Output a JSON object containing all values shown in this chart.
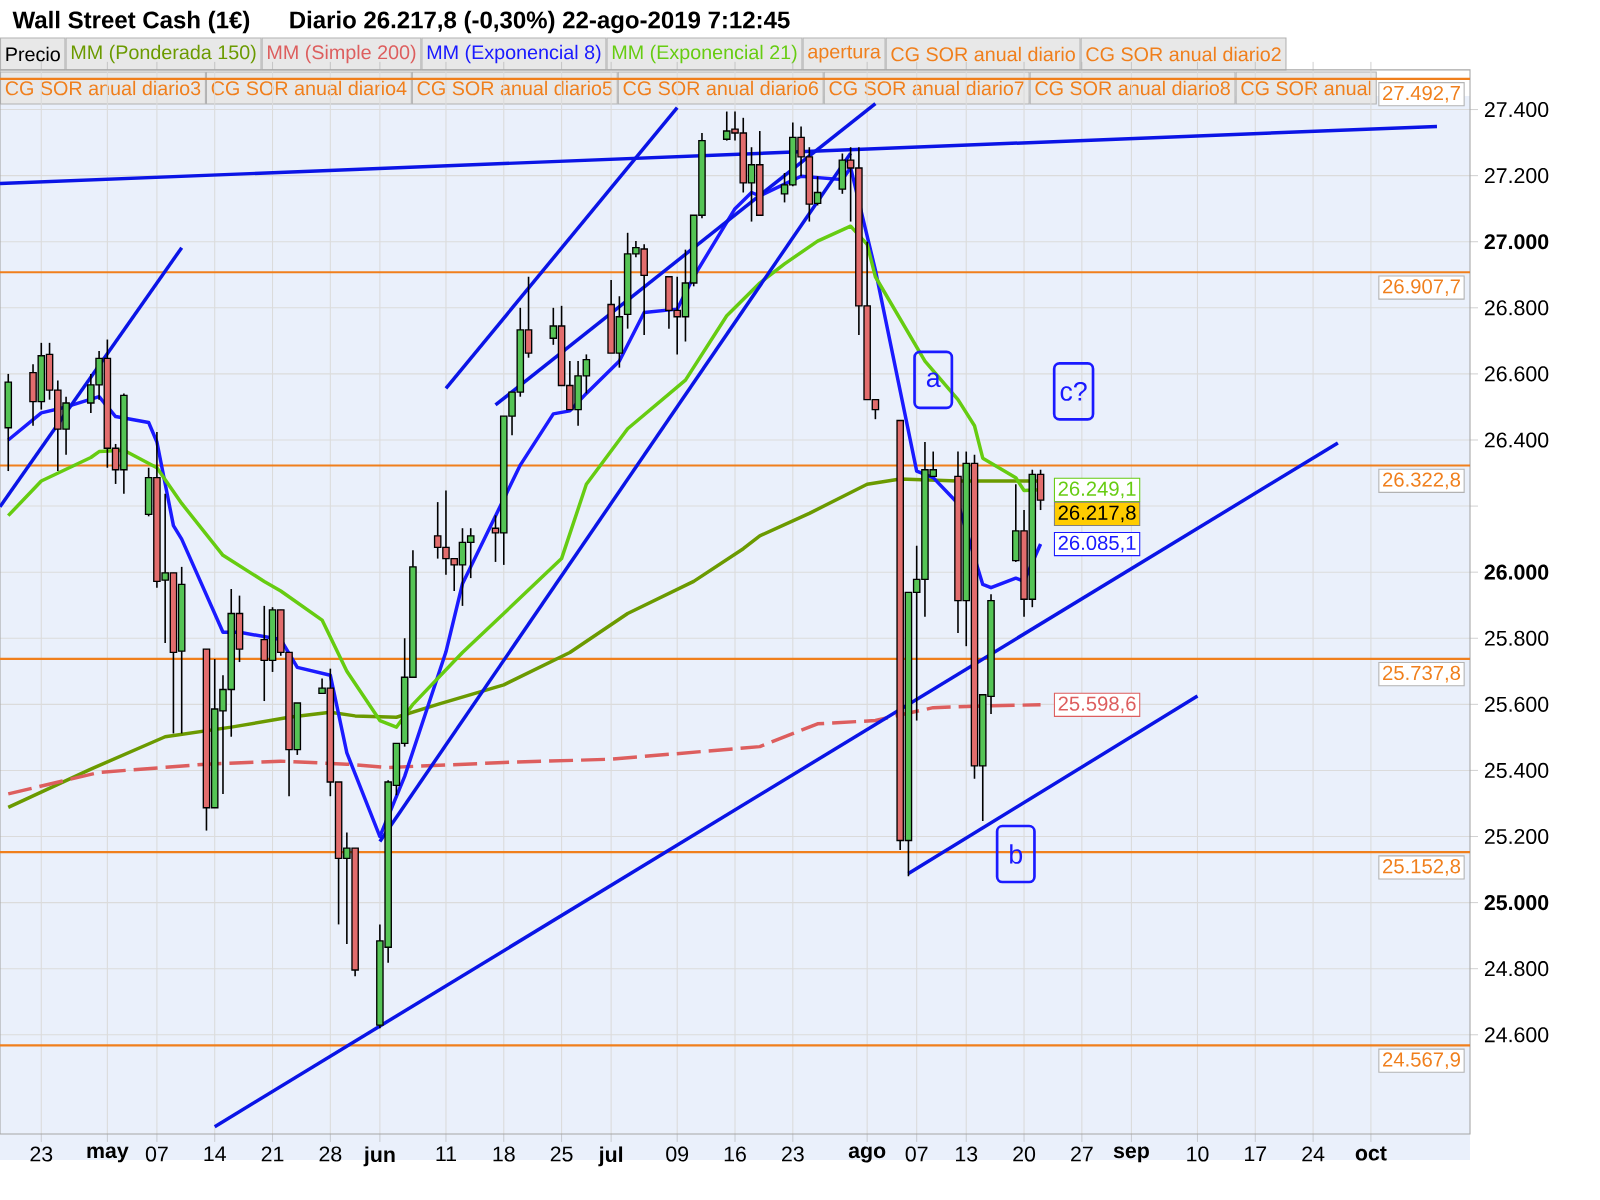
{
  "chart_data": {
    "type": "candlestick",
    "title": "Wall Street Cash (1€)",
    "subtitle": "Diario   26.217,8 (-0,30%)   22-ago-2019 7:12:45",
    "xlim": [
      "2019-04-18",
      "2019-10-13"
    ],
    "ylim": [
      24300,
      27520
    ],
    "xticks": [
      {
        "value": "2019-04-23",
        "label": "23"
      },
      {
        "value": "2019-05-01",
        "label": "may"
      },
      {
        "value": "2019-05-07",
        "label": "07"
      },
      {
        "value": "2019-05-14",
        "label": "14"
      },
      {
        "value": "2019-05-21",
        "label": "21"
      },
      {
        "value": "2019-05-28",
        "label": "28"
      },
      {
        "value": "2019-06-03",
        "label": "jun"
      },
      {
        "value": "2019-06-11",
        "label": "11"
      },
      {
        "value": "2019-06-18",
        "label": "18"
      },
      {
        "value": "2019-06-25",
        "label": "25"
      },
      {
        "value": "2019-07-01",
        "label": "jul"
      },
      {
        "value": "2019-07-09",
        "label": "09"
      },
      {
        "value": "2019-07-16",
        "label": "16"
      },
      {
        "value": "2019-07-23",
        "label": "23"
      },
      {
        "value": "2019-08-01",
        "label": "ago"
      },
      {
        "value": "2019-08-07",
        "label": "07"
      },
      {
        "value": "2019-08-13",
        "label": "13"
      },
      {
        "value": "2019-08-20",
        "label": "20"
      },
      {
        "value": "2019-08-27",
        "label": "27"
      },
      {
        "value": "2019-09-02",
        "label": "sep"
      },
      {
        "value": "2019-09-10",
        "label": "10"
      },
      {
        "value": "2019-09-17",
        "label": "17"
      },
      {
        "value": "2019-09-24",
        "label": "24"
      },
      {
        "value": "2019-10-01",
        "label": "oct"
      }
    ],
    "yticks": [
      {
        "value": 24600,
        "label": "24.600"
      },
      {
        "value": 24800,
        "label": "24.800"
      },
      {
        "value": 25000,
        "label": "25.000"
      },
      {
        "value": 25200,
        "label": "25.200"
      },
      {
        "value": 25400,
        "label": "25.400"
      },
      {
        "value": 25600,
        "label": "25.600"
      },
      {
        "value": 25800,
        "label": "25.800"
      },
      {
        "value": 26000,
        "label": "26.000"
      },
      {
        "value": 26200,
        "label": null
      },
      {
        "value": 26400,
        "label": "26.400"
      },
      {
        "value": 26600,
        "label": "26.600"
      },
      {
        "value": 26800,
        "label": "26.800"
      },
      {
        "value": 27000,
        "label": "27.000"
      },
      {
        "value": 27200,
        "label": "27.200"
      },
      {
        "value": 27400,
        "label": "27.400"
      }
    ],
    "grid": true,
    "legend": "top",
    "series": [
      {
        "name": "Precio",
        "color": "#000000",
        "x": [
          "2019-04-19",
          "2019-04-22",
          "2019-04-23",
          "2019-04-24",
          "2019-04-25",
          "2019-04-26",
          "2019-04-29",
          "2019-04-30",
          "2019-05-01",
          "2019-05-02",
          "2019-05-03",
          "2019-05-06",
          "2019-05-07",
          "2019-05-08",
          "2019-05-09",
          "2019-05-10",
          "2019-05-13",
          "2019-05-14",
          "2019-05-15",
          "2019-05-16",
          "2019-05-17",
          "2019-05-20",
          "2019-05-21",
          "2019-05-22",
          "2019-05-23",
          "2019-05-24",
          "2019-05-27",
          "2019-05-28",
          "2019-05-29",
          "2019-05-30",
          "2019-05-31",
          "2019-06-03",
          "2019-06-04",
          "2019-06-05",
          "2019-06-06",
          "2019-06-07",
          "2019-06-10",
          "2019-06-11",
          "2019-06-12",
          "2019-06-13",
          "2019-06-14",
          "2019-06-17",
          "2019-06-18",
          "2019-06-19",
          "2019-06-20",
          "2019-06-21",
          "2019-06-24",
          "2019-06-25",
          "2019-06-26",
          "2019-06-27",
          "2019-06-28",
          "2019-07-01",
          "2019-07-02",
          "2019-07-03",
          "2019-07-04",
          "2019-07-05",
          "2019-07-08",
          "2019-07-09",
          "2019-07-10",
          "2019-07-11",
          "2019-07-12",
          "2019-07-15",
          "2019-07-16",
          "2019-07-17",
          "2019-07-18",
          "2019-07-19",
          "2019-07-22",
          "2019-07-23",
          "2019-07-24",
          "2019-07-25",
          "2019-07-26",
          "2019-07-29",
          "2019-07-30",
          "2019-07-31",
          "2019-08-01",
          "2019-08-02",
          "2019-08-05",
          "2019-08-06",
          "2019-08-07",
          "2019-08-08",
          "2019-08-09",
          "2019-08-12",
          "2019-08-13",
          "2019-08-14",
          "2019-08-15",
          "2019-08-16",
          "2019-08-19",
          "2019-08-20",
          "2019-08-21",
          "2019-08-22"
        ],
        "ohlc": [
          [
            26437,
            26600,
            26306,
            26575
          ],
          [
            26604,
            26629,
            26443,
            26516
          ],
          [
            26516,
            26694,
            26492,
            26655
          ],
          [
            26659,
            26694,
            26522,
            26551
          ],
          [
            26551,
            26580,
            26306,
            26433
          ],
          [
            26433,
            26531,
            26355,
            26512
          ],
          [
            26512,
            26600,
            26482,
            26567
          ],
          [
            26567,
            26669,
            26522,
            26647
          ],
          [
            26647,
            26704,
            26316,
            26375
          ],
          [
            26375,
            26388,
            26267,
            26310
          ],
          [
            26310,
            26541,
            26237,
            26535
          ],
          [
            26175,
            26316,
            26169,
            26286
          ],
          [
            26286,
            26424,
            25953,
            25972
          ],
          [
            25976,
            26237,
            25786,
            25998
          ],
          [
            25998,
            25998,
            25512,
            25757
          ],
          [
            25761,
            26016,
            25512,
            25963
          ],
          [
            25767,
            25767,
            25218,
            25287
          ],
          [
            25287,
            25737,
            25287,
            25586
          ],
          [
            25580,
            25688,
            25329,
            25645
          ],
          [
            25645,
            25949,
            25502,
            25875
          ],
          [
            25875,
            25929,
            25728,
            25767
          ],
          [
            25796,
            25898,
            25610,
            25733
          ],
          [
            25733,
            25894,
            25698,
            25886
          ],
          [
            25886,
            25886,
            25747,
            25757
          ],
          [
            25757,
            25757,
            25322,
            25463
          ],
          [
            25463,
            25604,
            25447,
            25604
          ],
          [
            25633,
            25678,
            25633,
            25649
          ],
          [
            25649,
            25708,
            25322,
            25365
          ],
          [
            25365,
            25365,
            24934,
            25134
          ],
          [
            25134,
            25212,
            24875,
            25165
          ],
          [
            25165,
            25165,
            24777,
            24796
          ],
          [
            24629,
            24934,
            24620,
            24884
          ],
          [
            24865,
            25370,
            24818,
            25365
          ],
          [
            25355,
            25482,
            25325,
            25482
          ],
          [
            25482,
            25800,
            25472,
            25682
          ],
          [
            25682,
            26066,
            25682,
            26016
          ],
          [
            26110,
            26212,
            26041,
            26075
          ],
          [
            26075,
            26247,
            25992,
            26041
          ],
          [
            26041,
            26041,
            25943,
            26022
          ],
          [
            26022,
            26133,
            25898,
            26090
          ],
          [
            26090,
            26133,
            25982,
            26110
          ],
          [
            26133,
            26172,
            26031,
            26119
          ],
          [
            26119,
            26472,
            26022,
            26472
          ],
          [
            26472,
            26545,
            26414,
            26545
          ],
          [
            26545,
            26800,
            26531,
            26733
          ],
          [
            26733,
            26894,
            26649,
            26663
          ],
          [
            26708,
            26800,
            26688,
            26745
          ],
          [
            26745,
            26806,
            26565,
            26565
          ],
          [
            26565,
            26639,
            26492,
            26492
          ],
          [
            26492,
            26639,
            26443,
            26594
          ],
          [
            26594,
            26659,
            26541,
            26643
          ],
          [
            26810,
            26884,
            26663,
            26663
          ],
          [
            26663,
            26835,
            26619,
            26773
          ],
          [
            26780,
            27027,
            26737,
            26963
          ],
          [
            26963,
            27002,
            26953,
            26982
          ],
          [
            26978,
            26992,
            26718,
            26898
          ],
          [
            26894,
            26894,
            26737,
            26792
          ],
          [
            26792,
            26894,
            26659,
            26773
          ],
          [
            26773,
            26976,
            26698,
            26875
          ],
          [
            26875,
            27080,
            26865,
            27080
          ],
          [
            27080,
            27329,
            27071,
            27306
          ],
          [
            27310,
            27394,
            27306,
            27335
          ],
          [
            27341,
            27394,
            27306,
            27329
          ],
          [
            27329,
            27375,
            27149,
            27178
          ],
          [
            27178,
            27286,
            27061,
            27233
          ],
          [
            27233,
            27335,
            27080,
            27080
          ],
          [
            27145,
            27208,
            27119,
            27172
          ],
          [
            27172,
            27361,
            27168,
            27316
          ],
          [
            27316,
            27349,
            27198,
            27257
          ],
          [
            27257,
            27286,
            27061,
            27114
          ],
          [
            27116,
            27198,
            27110,
            27149
          ],
          [
            27159,
            27267,
            27145,
            27247
          ],
          [
            27247,
            27286,
            27061,
            27223
          ],
          [
            27223,
            27286,
            26718,
            26806
          ],
          [
            26806,
            27000,
            26522,
            26522
          ],
          [
            26522,
            26522,
            26463,
            26492
          ],
          [
            26459,
            26459,
            25159,
            25188
          ],
          [
            25188,
            25939,
            25080,
            25939
          ],
          [
            25939,
            26080,
            25551,
            25978
          ],
          [
            25978,
            26394,
            25865,
            26310
          ],
          [
            26290,
            26365,
            26290,
            26310
          ],
          [
            26290,
            26365,
            25816,
            25914
          ],
          [
            25914,
            26365,
            25776,
            26329
          ],
          [
            26329,
            26355,
            25375,
            25414
          ],
          [
            25414,
            25629,
            25247,
            25629
          ],
          [
            25624,
            25933,
            25571,
            25914
          ],
          [
            26035,
            26266,
            26031,
            26125
          ],
          [
            26125,
            26188,
            25865,
            25918
          ],
          [
            25918,
            26310,
            25894,
            26296
          ],
          [
            26296,
            26310,
            26188,
            26217.8
          ]
        ],
        "colors": [
          "#55c455",
          "#e26d6d",
          "#55c455",
          "#e26d6d",
          "#e26d6d",
          "#55c455",
          "#55c455",
          "#55c455",
          "#e26d6d",
          "#e26d6d",
          "#55c455",
          "#55c455",
          "#e26d6d",
          "#55c455",
          "#e26d6d",
          "#55c455",
          "#e26d6d",
          "#55c455",
          "#55c455",
          "#55c455",
          "#e26d6d",
          "#e26d6d",
          "#55c455",
          "#e26d6d",
          "#e26d6d",
          "#55c455",
          "#55c455",
          "#e26d6d",
          "#e26d6d",
          "#55c455",
          "#e26d6d",
          "#55c455",
          "#55c455",
          "#55c455",
          "#55c455",
          "#55c455",
          "#e26d6d",
          "#e26d6d",
          "#e26d6d",
          "#55c455",
          "#55c455",
          "#e26d6d",
          "#55c455",
          "#55c455",
          "#55c455",
          "#e26d6d",
          "#55c455",
          "#e26d6d",
          "#e26d6d",
          "#55c455",
          "#55c455",
          "#e26d6d",
          "#55c455",
          "#55c455",
          "#55c455",
          "#e26d6d",
          "#e26d6d",
          "#e26d6d",
          "#55c455",
          "#55c455",
          "#55c455",
          "#55c455",
          "#e26d6d",
          "#e26d6d",
          "#55c455",
          "#e26d6d",
          "#55c455",
          "#55c455",
          "#e26d6d",
          "#e26d6d",
          "#55c455",
          "#55c455",
          "#e26d6d",
          "#e26d6d",
          "#e26d6d",
          "#e26d6d",
          "#e26d6d",
          "#55c455",
          "#55c455",
          "#55c455",
          "#55c455",
          "#e26d6d",
          "#55c455",
          "#e26d6d",
          "#55c455",
          "#55c455",
          "#55c455",
          "#e26d6d",
          "#55c455",
          "#e26d6d"
        ],
        "value_labels": [
          null,
          null,
          null,
          null,
          null,
          null,
          null,
          null,
          null,
          null,
          null,
          null,
          null,
          null,
          null,
          null,
          null,
          null,
          null,
          null,
          null,
          null,
          null,
          null,
          null,
          null,
          null,
          null,
          null,
          null,
          null,
          null,
          null,
          null,
          null,
          null,
          null,
          null,
          null,
          null,
          null,
          null,
          null,
          null,
          null,
          null,
          null,
          null,
          null,
          null,
          null,
          null,
          null,
          null,
          null,
          null,
          null,
          null,
          null,
          null,
          null,
          null,
          null,
          null,
          null,
          null,
          null,
          null,
          null,
          null,
          null,
          null,
          null,
          null,
          null,
          null,
          null,
          null,
          null,
          null,
          null,
          null,
          null,
          null,
          null,
          null,
          null,
          null,
          null,
          "26.217,8"
        ]
      },
      {
        "name": "MM (Ponderada 150)",
        "type": "line",
        "color": "#6b9a00",
        "x": [
          "2019-04-19",
          "2019-04-29",
          "2019-05-08",
          "2019-05-16",
          "2019-05-23",
          "2019-05-28",
          "2019-05-31",
          "2019-06-05",
          "2019-06-10",
          "2019-06-18",
          "2019-06-26",
          "2019-07-03",
          "2019-07-11",
          "2019-07-17",
          "2019-07-19",
          "2019-07-25",
          "2019-08-01",
          "2019-08-05",
          "2019-08-12",
          "2019-08-22"
        ],
        "values": [
          25288,
          25404,
          25502,
          25531,
          25561,
          25576,
          25565,
          25561,
          25600,
          25659,
          25757,
          25875,
          25972,
          26071,
          26110,
          26178,
          26266,
          26282,
          26276,
          26276
        ]
      },
      {
        "name": "MM (Simple 200)",
        "type": "line",
        "color": "#dd5e5e",
        "line_style": "dashed",
        "x": [
          "2019-04-19",
          "2019-04-30",
          "2019-05-13",
          "2019-05-22",
          "2019-05-30",
          "2019-06-04",
          "2019-06-18",
          "2019-07-01",
          "2019-07-19",
          "2019-07-26",
          "2019-08-02",
          "2019-08-09",
          "2019-08-16",
          "2019-08-22"
        ],
        "values": [
          25329,
          25394,
          25419,
          25428,
          25419,
          25409,
          25424,
          25434,
          25472,
          25541,
          25551,
          25590,
          25596,
          25598.6
        ],
        "value_labels": [
          null,
          null,
          null,
          null,
          null,
          null,
          null,
          null,
          null,
          null,
          null,
          null,
          null,
          "25.598,6"
        ]
      },
      {
        "name": "MM (Exponencial 8)",
        "type": "line",
        "color": "#1a1aff",
        "x": [
          "2019-04-19",
          "2019-04-23",
          "2019-04-26",
          "2019-04-30",
          "2019-05-02",
          "2019-05-06",
          "2019-05-07",
          "2019-05-09",
          "2019-05-10",
          "2019-05-15",
          "2019-05-17",
          "2019-05-22",
          "2019-05-24",
          "2019-05-28",
          "2019-05-30",
          "2019-06-03",
          "2019-06-06",
          "2019-06-11",
          "2019-06-13",
          "2019-06-20",
          "2019-06-24",
          "2019-06-26",
          "2019-06-28",
          "2019-07-02",
          "2019-07-05",
          "2019-07-09",
          "2019-07-11",
          "2019-07-16",
          "2019-07-18",
          "2019-07-19",
          "2019-07-24",
          "2019-07-29",
          "2019-07-30",
          "2019-08-02",
          "2019-08-07",
          "2019-08-09",
          "2019-08-12",
          "2019-08-15",
          "2019-08-16",
          "2019-08-19",
          "2019-08-20",
          "2019-08-22"
        ],
        "values": [
          26400,
          26482,
          26500,
          26531,
          26471,
          26453,
          26394,
          26141,
          26100,
          25818,
          25818,
          25796,
          25712,
          25688,
          25453,
          25200,
          25382,
          25759,
          25965,
          26324,
          26479,
          26488,
          26541,
          26639,
          26786,
          26796,
          26894,
          27100,
          27149,
          27139,
          27198,
          27188,
          27224,
          26914,
          26306,
          26286,
          26208,
          25963,
          25953,
          25982,
          25972,
          26085.1
        ],
        "value_labels": [
          null,
          null,
          null,
          null,
          null,
          null,
          null,
          null,
          null,
          null,
          null,
          null,
          null,
          null,
          null,
          null,
          null,
          null,
          null,
          null,
          null,
          null,
          null,
          null,
          null,
          null,
          null,
          null,
          null,
          null,
          null,
          null,
          null,
          null,
          null,
          null,
          null,
          null,
          null,
          null,
          null,
          "26.085,1"
        ]
      },
      {
        "name": "MM (Exponencial 21)",
        "type": "line",
        "color": "#66cc11",
        "x": [
          "2019-04-19",
          "2019-04-23",
          "2019-04-29",
          "2019-04-30",
          "2019-05-03",
          "2019-05-07",
          "2019-05-10",
          "2019-05-15",
          "2019-05-20",
          "2019-05-22",
          "2019-05-27",
          "2019-05-30",
          "2019-06-03",
          "2019-06-05",
          "2019-06-07",
          "2019-06-13",
          "2019-06-18",
          "2019-06-25",
          "2019-06-28",
          "2019-07-03",
          "2019-07-10",
          "2019-07-15",
          "2019-07-19",
          "2019-07-22",
          "2019-07-26",
          "2019-07-30",
          "2019-08-01",
          "2019-08-02",
          "2019-08-08",
          "2019-08-12",
          "2019-08-14",
          "2019-08-15",
          "2019-08-19",
          "2019-08-20",
          "2019-08-22"
        ],
        "values": [
          26171,
          26276,
          26347,
          26365,
          26369,
          26316,
          26208,
          26051,
          25972,
          25943,
          25855,
          25700,
          25551,
          25531,
          25600,
          25757,
          25875,
          26041,
          26266,
          26434,
          26581,
          26776,
          26875,
          26933,
          27002,
          27047,
          26992,
          26894,
          26639,
          26522,
          26443,
          26345,
          26286,
          26247,
          26249.1
        ],
        "value_labels": [
          null,
          null,
          null,
          null,
          null,
          null,
          null,
          null,
          null,
          null,
          null,
          null,
          null,
          null,
          null,
          null,
          null,
          null,
          null,
          null,
          null,
          null,
          null,
          null,
          null,
          null,
          null,
          null,
          null,
          null,
          null,
          null,
          null,
          null,
          "26.249,1"
        ]
      },
      {
        "type": "line",
        "color": "#0a14e6",
        "x": [
          "2019-04-18",
          "2019-10-09"
        ],
        "values": [
          27176,
          27349
        ]
      },
      {
        "type": "line",
        "color": "#0a14e6",
        "x": [
          "2019-04-18",
          "2019-05-10"
        ],
        "values": [
          26198,
          26982
        ]
      },
      {
        "type": "line",
        "color": "#0a14e6",
        "x": [
          "2019-06-11",
          "2019-07-09"
        ],
        "values": [
          26556,
          27406
        ]
      },
      {
        "type": "line",
        "color": "#0a14e6",
        "x": [
          "2019-06-17",
          "2019-08-02"
        ],
        "values": [
          26506,
          27418
        ]
      },
      {
        "type": "line",
        "color": "#0a14e6",
        "x": [
          "2019-06-03",
          "2019-07-30"
        ],
        "values": [
          25185,
          27268
        ]
      },
      {
        "type": "line",
        "color": "#0a14e6",
        "x": [
          "2019-05-14",
          "2019-09-27"
        ],
        "values": [
          24322,
          26391
        ]
      },
      {
        "type": "line",
        "color": "#0a14e6",
        "x": [
          "2019-08-06",
          "2019-09-10"
        ],
        "values": [
          25088,
          25625
        ]
      }
    ],
    "ref_lines": [
      {
        "axis": "y",
        "value": 27492.7,
        "label": "27.492,7",
        "color": "#f07f1c"
      },
      {
        "axis": "y",
        "value": 26907.7,
        "label": "26.907,7",
        "color": "#f07f1c"
      },
      {
        "axis": "y",
        "value": 26322.8,
        "label": "26.322,8",
        "color": "#f07f1c"
      },
      {
        "axis": "y",
        "value": 25737.8,
        "label": "25.737,8",
        "color": "#f07f1c"
      },
      {
        "axis": "y",
        "value": 25152.8,
        "label": "25.152,8",
        "color": "#f07f1c"
      },
      {
        "axis": "y",
        "value": 24567.9,
        "label": "24.567,9",
        "color": "#f07f1c"
      }
    ],
    "annotations": [
      "apertura",
      "CG SOR anual diario",
      "CG SOR anual diario2",
      "CG SOR anual diario3",
      "CG SOR anual diario4",
      "CG SOR anual diario5",
      "CG SOR anual diario6",
      "CG SOR anual diario7",
      "CG SOR anual diario8",
      "CG SOR anual",
      {
        "text": "a",
        "x": "2019-08-09",
        "y": 26582
      },
      {
        "text": "b",
        "x": "2019-08-19",
        "y": 25147
      },
      {
        "text": "c?",
        "x": "2019-08-26",
        "y": 26547
      }
    ]
  }
}
